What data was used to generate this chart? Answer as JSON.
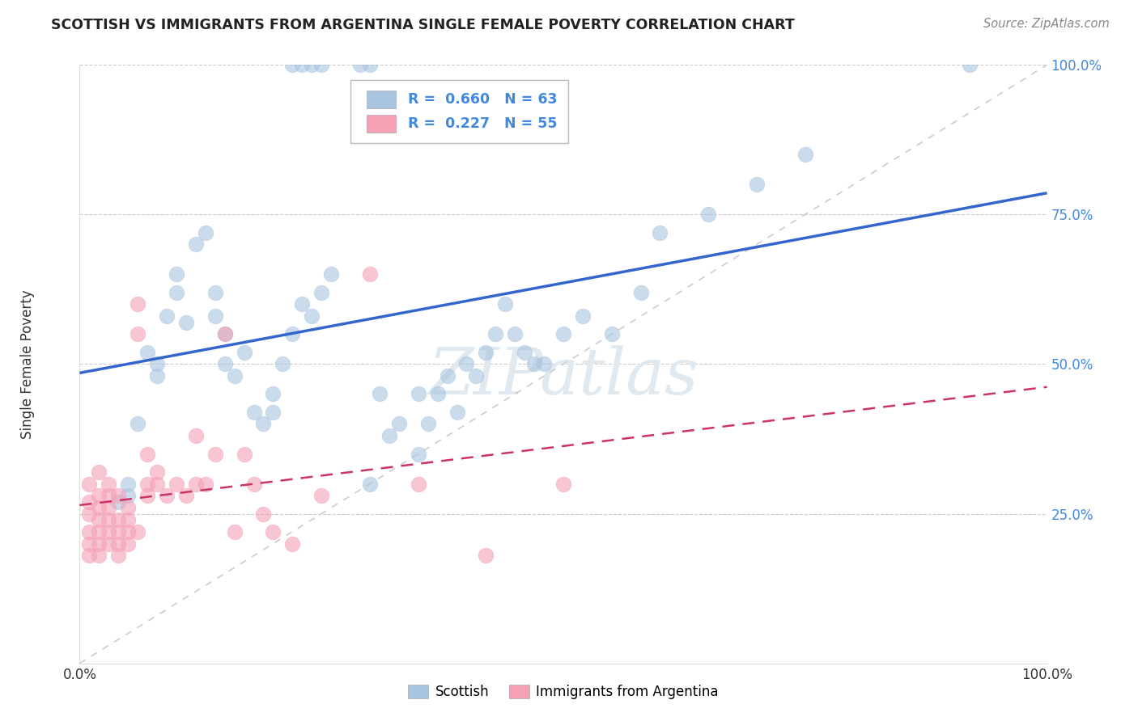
{
  "title": "SCOTTISH VS IMMIGRANTS FROM ARGENTINA SINGLE FEMALE POVERTY CORRELATION CHART",
  "source": "Source: ZipAtlas.com",
  "ylabel": "Single Female Poverty",
  "watermark": "ZIPatlas",
  "blue_R": 0.66,
  "blue_N": 63,
  "pink_R": 0.227,
  "pink_N": 55,
  "blue_color": "#a8c4e0",
  "pink_color": "#f4a0b5",
  "blue_line_color": "#3366cc",
  "pink_line_color": "#cc3366",
  "legend_label_blue": "Scottish",
  "legend_label_pink": "Immigrants from Argentina",
  "background_color": "#FFFFFF",
  "grid_color": "#cccccc",
  "ytick_color": "#4488dd",
  "title_color": "#222222",
  "source_color": "#888888"
}
